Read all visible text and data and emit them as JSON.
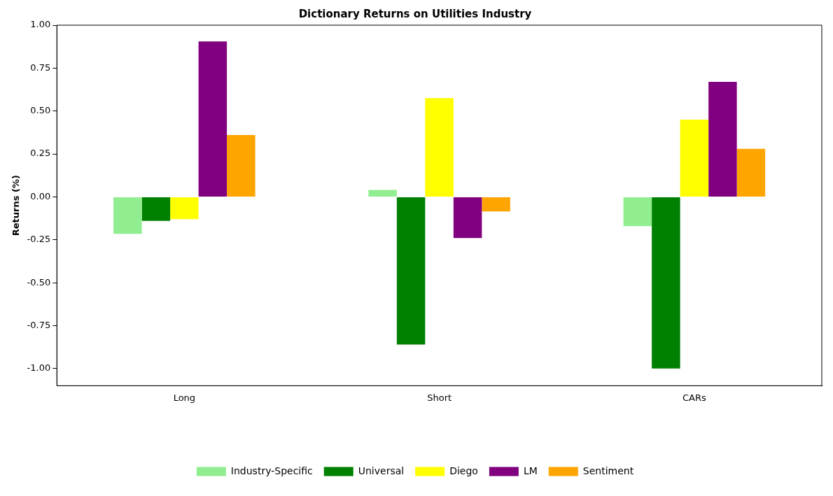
{
  "chart_data": {
    "type": "bar",
    "title": "Dictionary Returns on Utilities Industry",
    "ylabel": "Returns (%)",
    "categories": [
      "Long",
      "Short",
      "CARs"
    ],
    "series": [
      {
        "name": "Industry-Specific",
        "color": "#90ee90",
        "values": [
          -0.215,
          0.04,
          -0.17
        ]
      },
      {
        "name": "Universal",
        "color": "#008000",
        "values": [
          -0.14,
          -0.86,
          -1.0
        ]
      },
      {
        "name": "Diego",
        "color": "#ffff00",
        "values": [
          -0.13,
          0.575,
          0.45
        ]
      },
      {
        "name": "LM",
        "color": "#800080",
        "values": [
          0.905,
          -0.24,
          0.67
        ]
      },
      {
        "name": "Sentiment",
        "color": "#ffa500",
        "values": [
          0.36,
          -0.085,
          0.28
        ]
      }
    ],
    "ylim": [
      -1.1,
      1.0
    ],
    "yticks": [
      {
        "value": -1.0,
        "label": "-1.00"
      },
      {
        "value": -0.75,
        "label": "-0.75"
      },
      {
        "value": -0.5,
        "label": "-0.50"
      },
      {
        "value": -0.25,
        "label": "-0.25"
      },
      {
        "value": 0.0,
        "label": "0.00"
      },
      {
        "value": 0.25,
        "label": "0.25"
      },
      {
        "value": 0.5,
        "label": "0.50"
      },
      {
        "value": 0.75,
        "label": "0.75"
      },
      {
        "value": 1.0,
        "label": "1.00"
      }
    ],
    "grid": false,
    "legend": "bottom"
  }
}
